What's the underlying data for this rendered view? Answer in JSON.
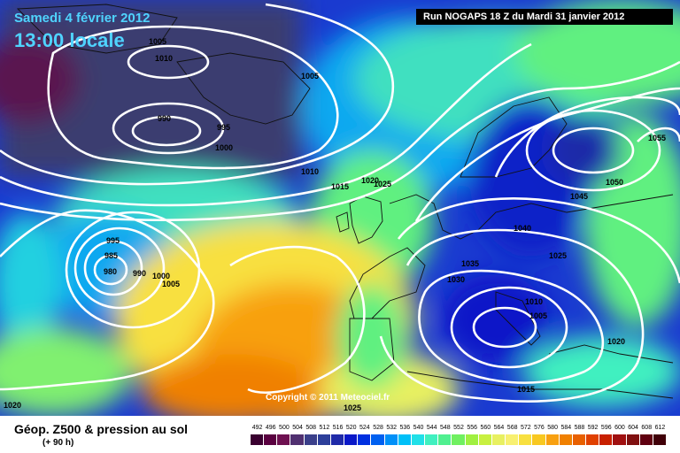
{
  "header": {
    "date": "Samedi 4 février 2012",
    "time": "13:00 locale",
    "run": "Run NOGAPS 18 Z du Mardi 31 janvier 2012"
  },
  "copyright": "Copyright © 2011 Meteociel.fr",
  "footer": {
    "title": "Géop. Z500 & pression au sol",
    "subtitle": "(+ 90 h)"
  },
  "isobar_labels": [
    "1005",
    "1010",
    "990",
    "995",
    "1000",
    "1005",
    "1010",
    "1015",
    "1020",
    "1025",
    "1055",
    "1050",
    "1045",
    "1040",
    "1035",
    "1030",
    "1025",
    "1010",
    "1005",
    "1020",
    "1015",
    "1025",
    "995",
    "985",
    "980",
    "990",
    "1000",
    "1005",
    "1020"
  ],
  "scale": {
    "values": [
      "492",
      "496",
      "500",
      "504",
      "508",
      "512",
      "516",
      "520",
      "524",
      "528",
      "532",
      "536",
      "540",
      "544",
      "548",
      "552",
      "556",
      "560",
      "564",
      "568",
      "572",
      "576",
      "580",
      "584",
      "588",
      "592",
      "596",
      "600",
      "604",
      "608",
      "612"
    ],
    "colors": [
      "#3a0030",
      "#5a0040",
      "#6e1050",
      "#503070",
      "#3a3f8a",
      "#2d3f9a",
      "#1f2aa8",
      "#0a18c8",
      "#0030e0",
      "#0060f0",
      "#0090f8",
      "#00c0f8",
      "#20e0e8",
      "#40f0c0",
      "#50f090",
      "#70f060",
      "#a0f040",
      "#c8f040",
      "#e8f060",
      "#f8f070",
      "#f8e040",
      "#f8c820",
      "#f8a010",
      "#f08000",
      "#e86000",
      "#e04000",
      "#c82000",
      "#a01010",
      "#801010",
      "#600010",
      "#400008"
    ]
  }
}
